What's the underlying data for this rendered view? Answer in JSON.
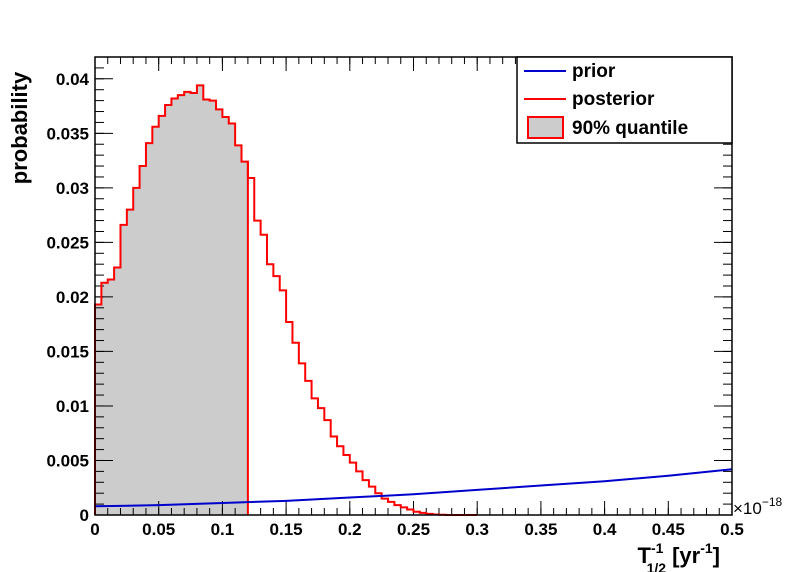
{
  "chart_data": {
    "type": "line",
    "title": "",
    "xlabel": {
      "base": "T",
      "sub": "1/2",
      "sup": "-1",
      "unit": "[yr",
      "unit_sup": "-1",
      "close": "]"
    },
    "ylabel": "probability",
    "x_exponent": "×10",
    "x_exponent_power": "−18",
    "xlim": [
      0,
      0.5
    ],
    "ylim": [
      0,
      0.042
    ],
    "xticks": [
      "0",
      "0.05",
      "0.1",
      "0.15",
      "0.2",
      "0.25",
      "0.3",
      "0.35",
      "0.4",
      "0.45",
      "0.5"
    ],
    "yticks": [
      "0",
      "0.005",
      "0.01",
      "0.015",
      "0.02",
      "0.025",
      "0.03",
      "0.035",
      "0.04"
    ],
    "legend_position": "top-right",
    "series": [
      {
        "name": "prior",
        "color": "#0000cc",
        "x": [
          0,
          0.05,
          0.1,
          0.15,
          0.2,
          0.25,
          0.3,
          0.35,
          0.4,
          0.45,
          0.5
        ],
        "y": [
          0.0008,
          0.0009,
          0.0011,
          0.0013,
          0.0016,
          0.0019,
          0.0023,
          0.0027,
          0.0031,
          0.0036,
          0.0042
        ]
      },
      {
        "name": "posterior",
        "color": "#ff0000",
        "style": "step",
        "bin_width": 0.005,
        "x_start": 0,
        "values": [
          0.0193,
          0.0213,
          0.0216,
          0.0227,
          0.0266,
          0.028,
          0.03,
          0.032,
          0.0341,
          0.0356,
          0.0366,
          0.0376,
          0.0382,
          0.0385,
          0.0388,
          0.0387,
          0.0394,
          0.0381,
          0.038,
          0.0372,
          0.0365,
          0.0359,
          0.0339,
          0.0324,
          0.0309,
          0.027,
          0.0257,
          0.023,
          0.0219,
          0.0206,
          0.0177,
          0.0158,
          0.0139,
          0.0123,
          0.0107,
          0.0098,
          0.0087,
          0.0072,
          0.0063,
          0.0055,
          0.0048,
          0.004,
          0.0032,
          0.0026,
          0.002,
          0.0015,
          0.0012,
          0.0009,
          0.0007,
          0.0005,
          0.0003,
          0.0002,
          0.0001,
          5e-05,
          2e-05,
          0,
          0,
          0,
          0,
          0
        ]
      },
      {
        "name": "90% quantile",
        "color": "#ff0000",
        "fill": "#cccccc",
        "x_range": [
          0,
          0.12
        ]
      }
    ]
  }
}
